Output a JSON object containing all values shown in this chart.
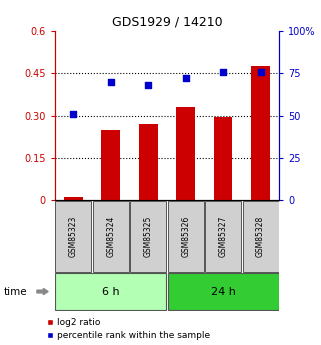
{
  "title": "GDS1929 / 14210",
  "categories": [
    "GSM85323",
    "GSM85324",
    "GSM85325",
    "GSM85326",
    "GSM85327",
    "GSM85328"
  ],
  "log2_ratio": [
    0.01,
    0.25,
    0.27,
    0.33,
    0.295,
    0.475
  ],
  "percentile_rank": [
    51,
    70,
    68,
    72,
    76,
    76
  ],
  "bar_color": "#cc0000",
  "dot_color": "#0000cc",
  "ylim_left": [
    0,
    0.6
  ],
  "ylim_right": [
    0,
    100
  ],
  "yticks_left": [
    0,
    0.15,
    0.3,
    0.45,
    0.6
  ],
  "ytick_labels_left": [
    "0",
    "0.15",
    "0.30",
    "0.45",
    "0.6"
  ],
  "yticks_right": [
    0,
    25,
    50,
    75,
    100
  ],
  "ytick_labels_right": [
    "0",
    "25",
    "50",
    "75",
    "100%"
  ],
  "hlines": [
    0.15,
    0.3,
    0.45
  ],
  "group1_label": "6 h",
  "group2_label": "24 h",
  "group1_indices": [
    0,
    1,
    2
  ],
  "group2_indices": [
    3,
    4,
    5
  ],
  "group1_color": "#b3ffb3",
  "group2_color": "#33cc33",
  "legend1": "log2 ratio",
  "legend2": "percentile rank within the sample",
  "time_label": "time",
  "bg_color": "#ffffff",
  "left_axis_color": "#cc0000",
  "right_axis_color": "#0000cc"
}
